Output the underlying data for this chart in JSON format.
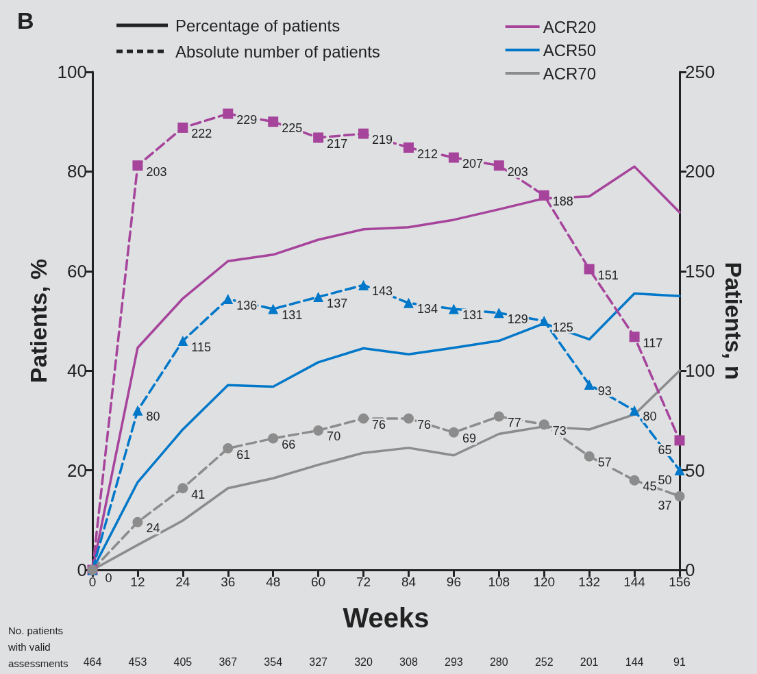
{
  "chart_data": {
    "type": "line",
    "title": "B",
    "xlabel": "Weeks",
    "ylabel": "Patients, %",
    "y2label": "Patients, n",
    "x": [
      0,
      12,
      24,
      36,
      48,
      60,
      72,
      84,
      96,
      108,
      120,
      132,
      144,
      156
    ],
    "xlim": [
      0,
      156
    ],
    "xticks": [
      0,
      12,
      24,
      36,
      48,
      60,
      72,
      84,
      96,
      108,
      120,
      132,
      144,
      156
    ],
    "ylim": [
      0,
      100
    ],
    "yticks": [
      0,
      20,
      40,
      60,
      80,
      100
    ],
    "y2lim": [
      0,
      250
    ],
    "y2ticks": [
      0,
      50,
      100,
      150,
      200,
      250
    ],
    "legend": "top right",
    "series": [
      {
        "name": "ACR20",
        "color": "#a6449c",
        "line_style": "solid",
        "marker": "none",
        "values": [
          0,
          44.6,
          54.5,
          62,
          63.3,
          66.3,
          68.4,
          68.8,
          70.3,
          72.4,
          74.6,
          75,
          81,
          71.8
        ]
      },
      {
        "name": "ACR50",
        "color": "#0077c8",
        "line_style": "solid",
        "marker": "none",
        "values": [
          0,
          17.6,
          28.2,
          37.1,
          36.8,
          41.7,
          44.5,
          43.3,
          44.6,
          46,
          49.5,
          46.3,
          55.5,
          55
        ]
      },
      {
        "name": "ACR70",
        "color": "#8c8c8c",
        "line_style": "solid",
        "marker": "none",
        "values": [
          0,
          5,
          9.9,
          16.4,
          18.4,
          21.1,
          23.5,
          24.5,
          23,
          27.3,
          28.8,
          28.2,
          31.2,
          40
        ]
      },
      {
        "color": "#a6449c",
        "line_style": "dashed",
        "marker": "square",
        "axis": "y2",
        "values": [
          0,
          203,
          222,
          229,
          225,
          217,
          219,
          212,
          207,
          203,
          188,
          151,
          117,
          65
        ],
        "value_labels": [
          null,
          "203",
          "222",
          "229",
          "225",
          "217",
          "219",
          "212",
          "207",
          "203",
          "188",
          "151",
          "117",
          "65"
        ]
      },
      {
        "color": "#0077c8",
        "line_style": "dashed",
        "marker": "triangle",
        "axis": "y2",
        "values": [
          0,
          80,
          115,
          136,
          131,
          137,
          143,
          134,
          131,
          129,
          125,
          93,
          80,
          50
        ],
        "value_labels": [
          "0",
          "80",
          "115",
          "136",
          "131",
          "137",
          "143",
          "134",
          "131",
          "129",
          "125",
          "93",
          "80",
          "50"
        ]
      },
      {
        "color": "#8c8c8c",
        "line_style": "dashed",
        "marker": "circle",
        "axis": "y2",
        "values": [
          0,
          24,
          41,
          61,
          66,
          70,
          76,
          76,
          69,
          77,
          73,
          57,
          45,
          37
        ],
        "value_labels": [
          null,
          "24",
          "41",
          "61",
          "66",
          "70",
          "76",
          "76",
          "69",
          "77",
          "73",
          "57",
          "45",
          "37"
        ]
      }
    ],
    "annotations": [
      "Percentage of patients",
      "Absolute number of patients",
      "No. patients\nwith valid\nassessments",
      "464",
      "453",
      "405",
      "367",
      "354",
      "327",
      "320",
      "308",
      "293",
      "280",
      "252",
      "201",
      "144",
      "91"
    ]
  }
}
